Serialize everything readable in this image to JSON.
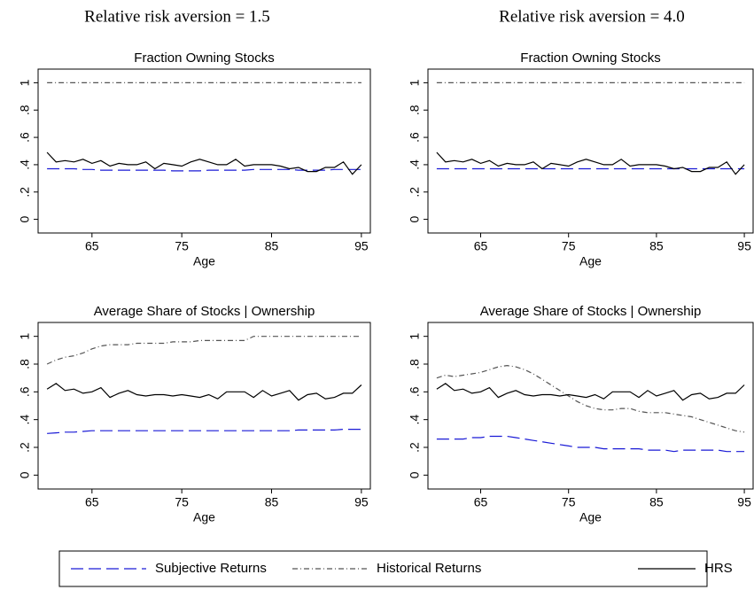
{
  "column_titles": [
    "Relative risk aversion = 1.5",
    "Relative risk aversion = 4.0"
  ],
  "chart_data": [
    {
      "type": "line",
      "title": "Fraction Owning Stocks",
      "xlabel": "Age",
      "x": [
        60,
        61,
        62,
        63,
        64,
        65,
        66,
        67,
        68,
        69,
        70,
        71,
        72,
        73,
        74,
        75,
        76,
        77,
        78,
        79,
        80,
        81,
        82,
        83,
        84,
        85,
        86,
        87,
        88,
        89,
        90,
        91,
        92,
        93,
        94,
        95
      ],
      "xlim": [
        59,
        96
      ],
      "ylim": [
        -0.1,
        1.1
      ],
      "xticks": [
        65,
        75,
        85,
        95
      ],
      "yticks": [
        0,
        {
          "value": 0.2,
          "label": ".2"
        },
        {
          "value": 0.4,
          "label": ".4"
        },
        {
          "value": 0.6,
          "label": ".6"
        },
        {
          "value": 0.8,
          "label": ".8"
        },
        1
      ],
      "series": [
        {
          "name": "Subjective Returns",
          "color": "#1a1ad6",
          "dash": "long-dash",
          "values": [
            0.37,
            0.37,
            0.37,
            0.37,
            0.365,
            0.365,
            0.36,
            0.36,
            0.36,
            0.36,
            0.36,
            0.36,
            0.36,
            0.36,
            0.355,
            0.355,
            0.355,
            0.355,
            0.36,
            0.36,
            0.36,
            0.36,
            0.36,
            0.365,
            0.365,
            0.365,
            0.365,
            0.365,
            0.36,
            0.36,
            0.36,
            0.36,
            0.365,
            0.365,
            0.365,
            0.365
          ]
        },
        {
          "name": "Historical Returns",
          "color": "#555555",
          "dash": "dash-dot",
          "values": [
            1,
            1,
            1,
            1,
            1,
            1,
            1,
            1,
            1,
            1,
            1,
            1,
            1,
            1,
            1,
            1,
            1,
            1,
            1,
            1,
            1,
            1,
            1,
            1,
            1,
            1,
            1,
            1,
            1,
            1,
            1,
            1,
            1,
            1,
            1,
            1
          ]
        },
        {
          "name": "HRS",
          "color": "#000000",
          "dash": "solid",
          "values": [
            0.49,
            0.42,
            0.43,
            0.42,
            0.44,
            0.41,
            0.43,
            0.39,
            0.41,
            0.4,
            0.4,
            0.42,
            0.37,
            0.41,
            0.4,
            0.39,
            0.42,
            0.44,
            0.42,
            0.4,
            0.4,
            0.44,
            0.39,
            0.4,
            0.4,
            0.4,
            0.39,
            0.37,
            0.38,
            0.35,
            0.35,
            0.38,
            0.38,
            0.42,
            0.33,
            0.4
          ]
        }
      ]
    },
    {
      "type": "line",
      "title": "Fraction Owning Stocks",
      "xlabel": "Age",
      "x": [
        60,
        61,
        62,
        63,
        64,
        65,
        66,
        67,
        68,
        69,
        70,
        71,
        72,
        73,
        74,
        75,
        76,
        77,
        78,
        79,
        80,
        81,
        82,
        83,
        84,
        85,
        86,
        87,
        88,
        89,
        90,
        91,
        92,
        93,
        94,
        95
      ],
      "xlim": [
        59,
        96
      ],
      "ylim": [
        -0.1,
        1.1
      ],
      "xticks": [
        65,
        75,
        85,
        95
      ],
      "yticks": [
        0,
        {
          "value": 0.2,
          "label": ".2"
        },
        {
          "value": 0.4,
          "label": ".4"
        },
        {
          "value": 0.6,
          "label": ".6"
        },
        {
          "value": 0.8,
          "label": ".8"
        },
        1
      ],
      "series": [
        {
          "name": "Subjective Returns",
          "color": "#1a1ad6",
          "dash": "long-dash",
          "values": [
            0.37,
            0.37,
            0.37,
            0.37,
            0.37,
            0.37,
            0.37,
            0.37,
            0.37,
            0.37,
            0.37,
            0.37,
            0.37,
            0.37,
            0.37,
            0.37,
            0.37,
            0.37,
            0.37,
            0.37,
            0.37,
            0.37,
            0.37,
            0.37,
            0.37,
            0.37,
            0.37,
            0.37,
            0.37,
            0.37,
            0.37,
            0.37,
            0.37,
            0.37,
            0.37,
            0.37
          ]
        },
        {
          "name": "Historical Returns",
          "color": "#555555",
          "dash": "dash-dot",
          "values": [
            1,
            1,
            1,
            1,
            1,
            1,
            1,
            1,
            1,
            1,
            1,
            1,
            1,
            1,
            1,
            1,
            1,
            1,
            1,
            1,
            1,
            1,
            1,
            1,
            1,
            1,
            1,
            1,
            1,
            1,
            1,
            1,
            1,
            1,
            1,
            1
          ]
        },
        {
          "name": "HRS",
          "color": "#000000",
          "dash": "solid",
          "values": [
            0.49,
            0.42,
            0.43,
            0.42,
            0.44,
            0.41,
            0.43,
            0.39,
            0.41,
            0.4,
            0.4,
            0.42,
            0.37,
            0.41,
            0.4,
            0.39,
            0.42,
            0.44,
            0.42,
            0.4,
            0.4,
            0.44,
            0.39,
            0.4,
            0.4,
            0.4,
            0.39,
            0.37,
            0.38,
            0.35,
            0.35,
            0.38,
            0.38,
            0.42,
            0.33,
            0.4
          ]
        }
      ]
    },
    {
      "type": "line",
      "title": "Average Share of Stocks | Ownership",
      "xlabel": "Age",
      "x": [
        60,
        61,
        62,
        63,
        64,
        65,
        66,
        67,
        68,
        69,
        70,
        71,
        72,
        73,
        74,
        75,
        76,
        77,
        78,
        79,
        80,
        81,
        82,
        83,
        84,
        85,
        86,
        87,
        88,
        89,
        90,
        91,
        92,
        93,
        94,
        95
      ],
      "xlim": [
        59,
        96
      ],
      "ylim": [
        -0.1,
        1.1
      ],
      "xticks": [
        65,
        75,
        85,
        95
      ],
      "yticks": [
        0,
        {
          "value": 0.2,
          "label": ".2"
        },
        {
          "value": 0.4,
          "label": ".4"
        },
        {
          "value": 0.6,
          "label": ".6"
        },
        {
          "value": 0.8,
          "label": ".8"
        },
        1
      ],
      "series": [
        {
          "name": "Subjective Returns",
          "color": "#1a1ad6",
          "dash": "long-dash",
          "values": [
            0.3,
            0.305,
            0.31,
            0.31,
            0.315,
            0.32,
            0.32,
            0.32,
            0.32,
            0.32,
            0.32,
            0.32,
            0.32,
            0.32,
            0.32,
            0.32,
            0.32,
            0.32,
            0.32,
            0.32,
            0.32,
            0.32,
            0.32,
            0.32,
            0.32,
            0.32,
            0.32,
            0.32,
            0.325,
            0.325,
            0.325,
            0.325,
            0.325,
            0.33,
            0.33,
            0.33
          ]
        },
        {
          "name": "Historical Returns",
          "color": "#555555",
          "dash": "dash-dot",
          "values": [
            0.8,
            0.83,
            0.85,
            0.86,
            0.88,
            0.91,
            0.93,
            0.94,
            0.94,
            0.94,
            0.95,
            0.95,
            0.95,
            0.95,
            0.96,
            0.96,
            0.96,
            0.97,
            0.97,
            0.97,
            0.97,
            0.97,
            0.97,
            1,
            1,
            1,
            1,
            1,
            1,
            1,
            1,
            1,
            1,
            1,
            1,
            1
          ]
        },
        {
          "name": "HRS",
          "color": "#000000",
          "dash": "solid",
          "values": [
            0.62,
            0.66,
            0.61,
            0.62,
            0.59,
            0.6,
            0.63,
            0.56,
            0.59,
            0.61,
            0.58,
            0.57,
            0.58,
            0.58,
            0.57,
            0.58,
            0.57,
            0.56,
            0.58,
            0.55,
            0.6,
            0.6,
            0.6,
            0.56,
            0.61,
            0.57,
            0.59,
            0.61,
            0.54,
            0.58,
            0.59,
            0.55,
            0.56,
            0.59,
            0.59,
            0.65
          ]
        }
      ]
    },
    {
      "type": "line",
      "title": "Average Share of Stocks | Ownership",
      "xlabel": "Age",
      "x": [
        60,
        61,
        62,
        63,
        64,
        65,
        66,
        67,
        68,
        69,
        70,
        71,
        72,
        73,
        74,
        75,
        76,
        77,
        78,
        79,
        80,
        81,
        82,
        83,
        84,
        85,
        86,
        87,
        88,
        89,
        90,
        91,
        92,
        93,
        94,
        95
      ],
      "xlim": [
        59,
        96
      ],
      "ylim": [
        -0.1,
        1.1
      ],
      "xticks": [
        65,
        75,
        85,
        95
      ],
      "yticks": [
        0,
        {
          "value": 0.2,
          "label": ".2"
        },
        {
          "value": 0.4,
          "label": ".4"
        },
        {
          "value": 0.6,
          "label": ".6"
        },
        {
          "value": 0.8,
          "label": ".8"
        },
        1
      ],
      "series": [
        {
          "name": "Subjective Returns",
          "color": "#1a1ad6",
          "dash": "long-dash",
          "values": [
            0.26,
            0.26,
            0.26,
            0.26,
            0.27,
            0.27,
            0.28,
            0.28,
            0.28,
            0.27,
            0.26,
            0.25,
            0.24,
            0.23,
            0.22,
            0.21,
            0.2,
            0.2,
            0.2,
            0.19,
            0.19,
            0.19,
            0.19,
            0.19,
            0.18,
            0.18,
            0.18,
            0.17,
            0.18,
            0.18,
            0.18,
            0.18,
            0.18,
            0.17,
            0.17,
            0.17
          ]
        },
        {
          "name": "Historical Returns",
          "color": "#555555",
          "dash": "dash-dot",
          "values": [
            0.7,
            0.72,
            0.71,
            0.72,
            0.73,
            0.74,
            0.76,
            0.78,
            0.79,
            0.78,
            0.76,
            0.73,
            0.69,
            0.65,
            0.61,
            0.57,
            0.53,
            0.5,
            0.48,
            0.47,
            0.47,
            0.48,
            0.48,
            0.46,
            0.45,
            0.45,
            0.45,
            0.44,
            0.43,
            0.42,
            0.4,
            0.38,
            0.36,
            0.34,
            0.32,
            0.31
          ]
        },
        {
          "name": "HRS",
          "color": "#000000",
          "dash": "solid",
          "values": [
            0.62,
            0.66,
            0.61,
            0.62,
            0.59,
            0.6,
            0.63,
            0.56,
            0.59,
            0.61,
            0.58,
            0.57,
            0.58,
            0.58,
            0.57,
            0.58,
            0.57,
            0.56,
            0.58,
            0.55,
            0.6,
            0.6,
            0.6,
            0.56,
            0.61,
            0.57,
            0.59,
            0.61,
            0.54,
            0.58,
            0.59,
            0.55,
            0.56,
            0.59,
            0.59,
            0.65
          ]
        }
      ]
    }
  ]
}
